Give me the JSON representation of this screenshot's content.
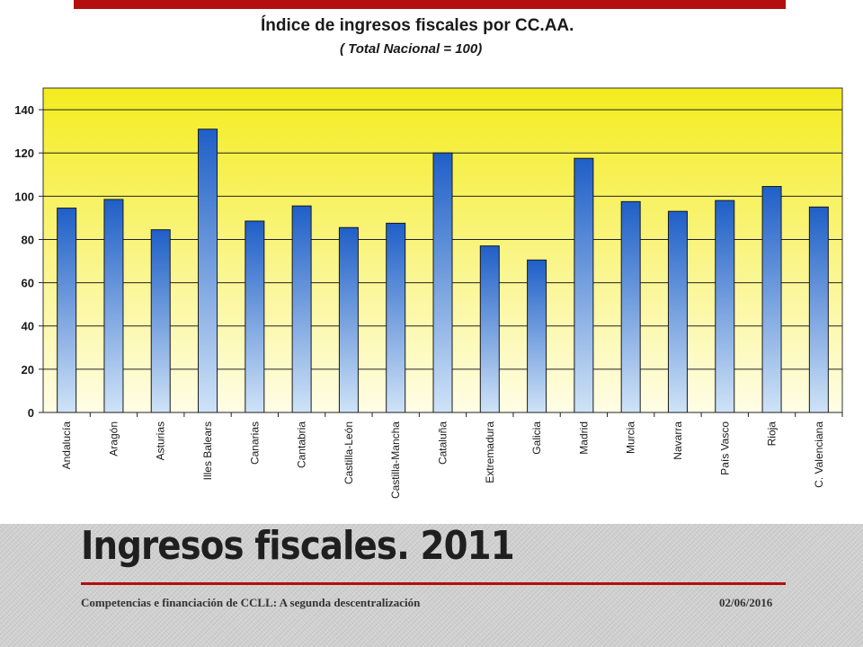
{
  "slide": {
    "title": "Ingresos fiscales. 2011",
    "footer_text": "Competencias e financiación de CCLL: A segunda descentralización",
    "date": "02/06/2016",
    "accent_color": "#b30f0f"
  },
  "chart_data": {
    "type": "bar",
    "title": "Índice de ingresos fiscales por CC.AA.",
    "subtitle": "( Total Nacional = 100)",
    "categories": [
      "Andalucía",
      "Aragón",
      "Asturias",
      "Illes Balears",
      "Canarias",
      "Cantabria",
      "Castilla-León",
      "Castilla-Mancha",
      "Cataluña",
      "Extremadura",
      "Galicia",
      "Madrid",
      "Murcia",
      "Navarra",
      "País Vasco",
      "Rioja",
      "C. Valenciana"
    ],
    "values": [
      94.5,
      98.5,
      84.5,
      131,
      88.5,
      95.5,
      85.5,
      87.5,
      120,
      77,
      70.5,
      117.5,
      97.5,
      93,
      98,
      104.5,
      95
    ],
    "xlabel": "",
    "ylabel": "",
    "ylim": [
      0,
      150
    ],
    "yticks": [
      0,
      20,
      40,
      60,
      80,
      100,
      120,
      140
    ],
    "grid": true,
    "legend": "none",
    "colors": {
      "bar_top": "#1f5fc7",
      "bar_bottom": "#cfe3f7",
      "bg_top": "#f4ec1e",
      "bg_bottom": "#fffde6"
    }
  }
}
